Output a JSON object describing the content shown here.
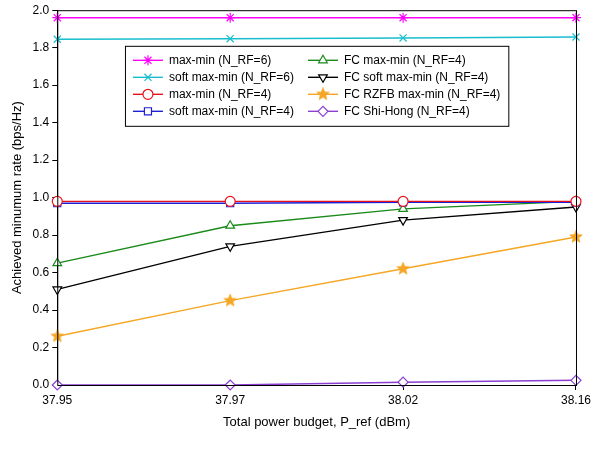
{
  "chart_data": {
    "type": "line",
    "x_label": "Total power budget, P_ref (dBm)",
    "y_label": "Achieved minumum rate (bps/Hz)",
    "categories": [
      "37.95",
      "37.97",
      "38.02",
      "38.16"
    ],
    "ylim": [
      0,
      2
    ],
    "yticks": [
      {
        "value": 0,
        "label": "0.0"
      },
      0.2,
      0.4,
      0.6,
      0.8,
      {
        "value": 1,
        "label": "1.0"
      },
      1.2,
      1.4,
      1.6,
      1.8,
      {
        "value": 2,
        "label": "2.0"
      }
    ],
    "grid": false,
    "legend": "upper center",
    "series": [
      {
        "name": "max-min (N_RF=6)",
        "color": "#ff00ff",
        "marker": "asterisk",
        "values": [
          1.96,
          1.96,
          1.96,
          1.96
        ]
      },
      {
        "name": "soft max-min (N_RF=6)",
        "color": "#17becf",
        "marker": "x",
        "values": [
          1.845,
          1.848,
          1.852,
          1.857
        ]
      },
      {
        "name": "max-min (N_RF=4)",
        "color": "#e8101a",
        "marker": "circle",
        "values": [
          0.98,
          0.98,
          0.98,
          0.98
        ]
      },
      {
        "name": "soft max-min (N_RF=4)",
        "color": "#1f1fd6",
        "marker": "square",
        "values": [
          0.97,
          0.97,
          0.975,
          0.975
        ]
      },
      {
        "name": "FC max-min (N_RF=4)",
        "color": "#1a8a1a",
        "marker": "triangle",
        "values": [
          0.65,
          0.85,
          0.94,
          0.98
        ]
      },
      {
        "name": "FC soft max-min (N_RF=4)",
        "color": "#000000",
        "marker": "triangle-down",
        "values": [
          0.51,
          0.74,
          0.88,
          0.95
        ]
      },
      {
        "name": "FC RZFB max-min (N_RF=4)",
        "color": "#f5a623",
        "marker": "star",
        "values": [
          0.26,
          0.45,
          0.62,
          0.79
        ]
      },
      {
        "name": "FC Shi-Hong (N_RF=4)",
        "color": "#8a3fd1",
        "marker": "diamond",
        "values": [
          0.0,
          0.0,
          0.015,
          0.025
        ]
      }
    ]
  }
}
